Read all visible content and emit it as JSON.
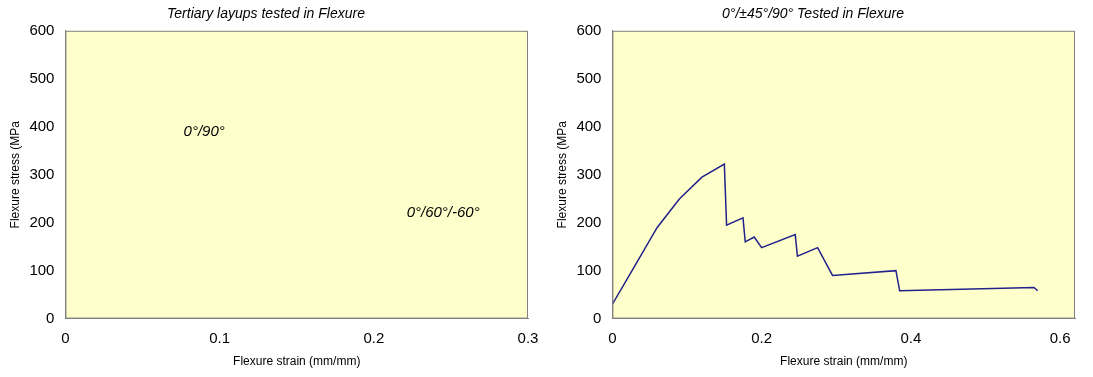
{
  "chart_data": [
    {
      "type": "line",
      "title": "Tertiary layups tested in Flexure",
      "x_label": "Flexure strain (mm/mm)",
      "y_label": "Flexure stress (MPa",
      "series": [],
      "xlim": [
        0,
        0.3
      ],
      "xticks": [
        0,
        0.1,
        0.2,
        0.3
      ],
      "ylim": [
        0,
        600
      ],
      "yticks": [
        0,
        100,
        200,
        300,
        400,
        500,
        600
      ],
      "grid": false,
      "legend": false,
      "annotations": [
        {
          "text": "0°/90°",
          "x": 0.09,
          "y": 390
        },
        {
          "text": "0°/60°/-60°",
          "x": 0.245,
          "y": 220
        }
      ]
    },
    {
      "type": "line",
      "title": "0°/±45°/90° Tested in Flexure",
      "x_label": "Flexure strain (mm/mm)",
      "y_label": "Flexure stress (MPa",
      "series": [
        {
          "color": "#22228c",
          "x": [
            0,
            0.03,
            0.06,
            0.09,
            0.12,
            0.15,
            0.153,
            0.175,
            0.178,
            0.19,
            0.2,
            0.245,
            0.248,
            0.275,
            0.295,
            0.38,
            0.385,
            0.565,
            0.57
          ],
          "values": [
            30,
            110,
            190,
            250,
            295,
            322,
            195,
            210,
            160,
            170,
            148,
            175,
            130,
            148,
            90,
            100,
            58,
            65,
            58
          ]
        }
      ],
      "xlim": [
        0,
        0.62
      ],
      "xticks": [
        0,
        0.2,
        0.4,
        0.6
      ],
      "ylim": [
        0,
        600
      ],
      "yticks": [
        0,
        100,
        200,
        300,
        400,
        500,
        600
      ],
      "grid": false,
      "legend": false
    }
  ]
}
